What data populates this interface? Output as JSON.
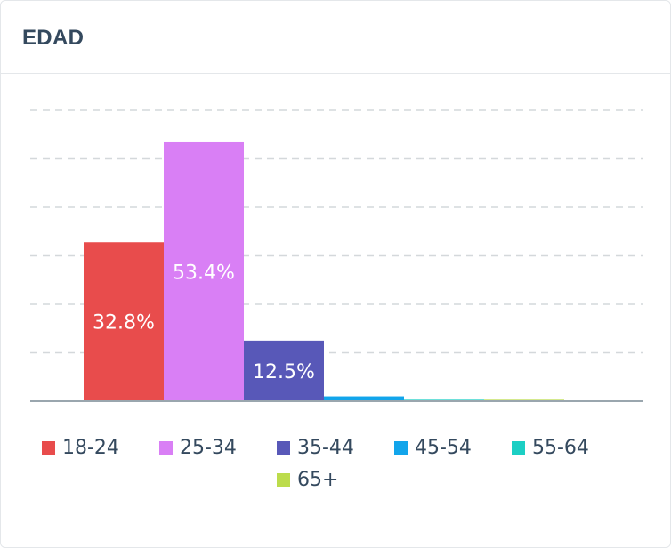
{
  "card": {
    "title": "EDAD"
  },
  "chart_data": {
    "type": "bar",
    "title": "EDAD",
    "categories": [
      "18-24",
      "25-34",
      "35-44",
      "45-54",
      "55-64",
      "65+"
    ],
    "values": [
      32.8,
      53.4,
      12.5,
      1.0,
      0.3,
      0.3
    ],
    "value_labels": [
      "32.8%",
      "53.4%",
      "12.5%",
      "",
      "",
      ""
    ],
    "colors": [
      "#e84c4c",
      "#d97ff5",
      "#5858b8",
      "#12a5eb",
      "#1ccfc4",
      "#bcdc4c"
    ],
    "ylim": [
      0,
      60
    ],
    "grid": true,
    "grid_style": "dashed",
    "legend_position": "bottom",
    "axis_labels_visible": false
  },
  "legend": {
    "items": [
      {
        "label": "18-24",
        "color": "#e84c4c"
      },
      {
        "label": "25-34",
        "color": "#d97ff5"
      },
      {
        "label": "35-44",
        "color": "#5858b8"
      },
      {
        "label": "45-54",
        "color": "#12a5eb"
      },
      {
        "label": "55-64",
        "color": "#1ccfc4"
      },
      {
        "label": "65+",
        "color": "#bcdc4c"
      }
    ]
  }
}
